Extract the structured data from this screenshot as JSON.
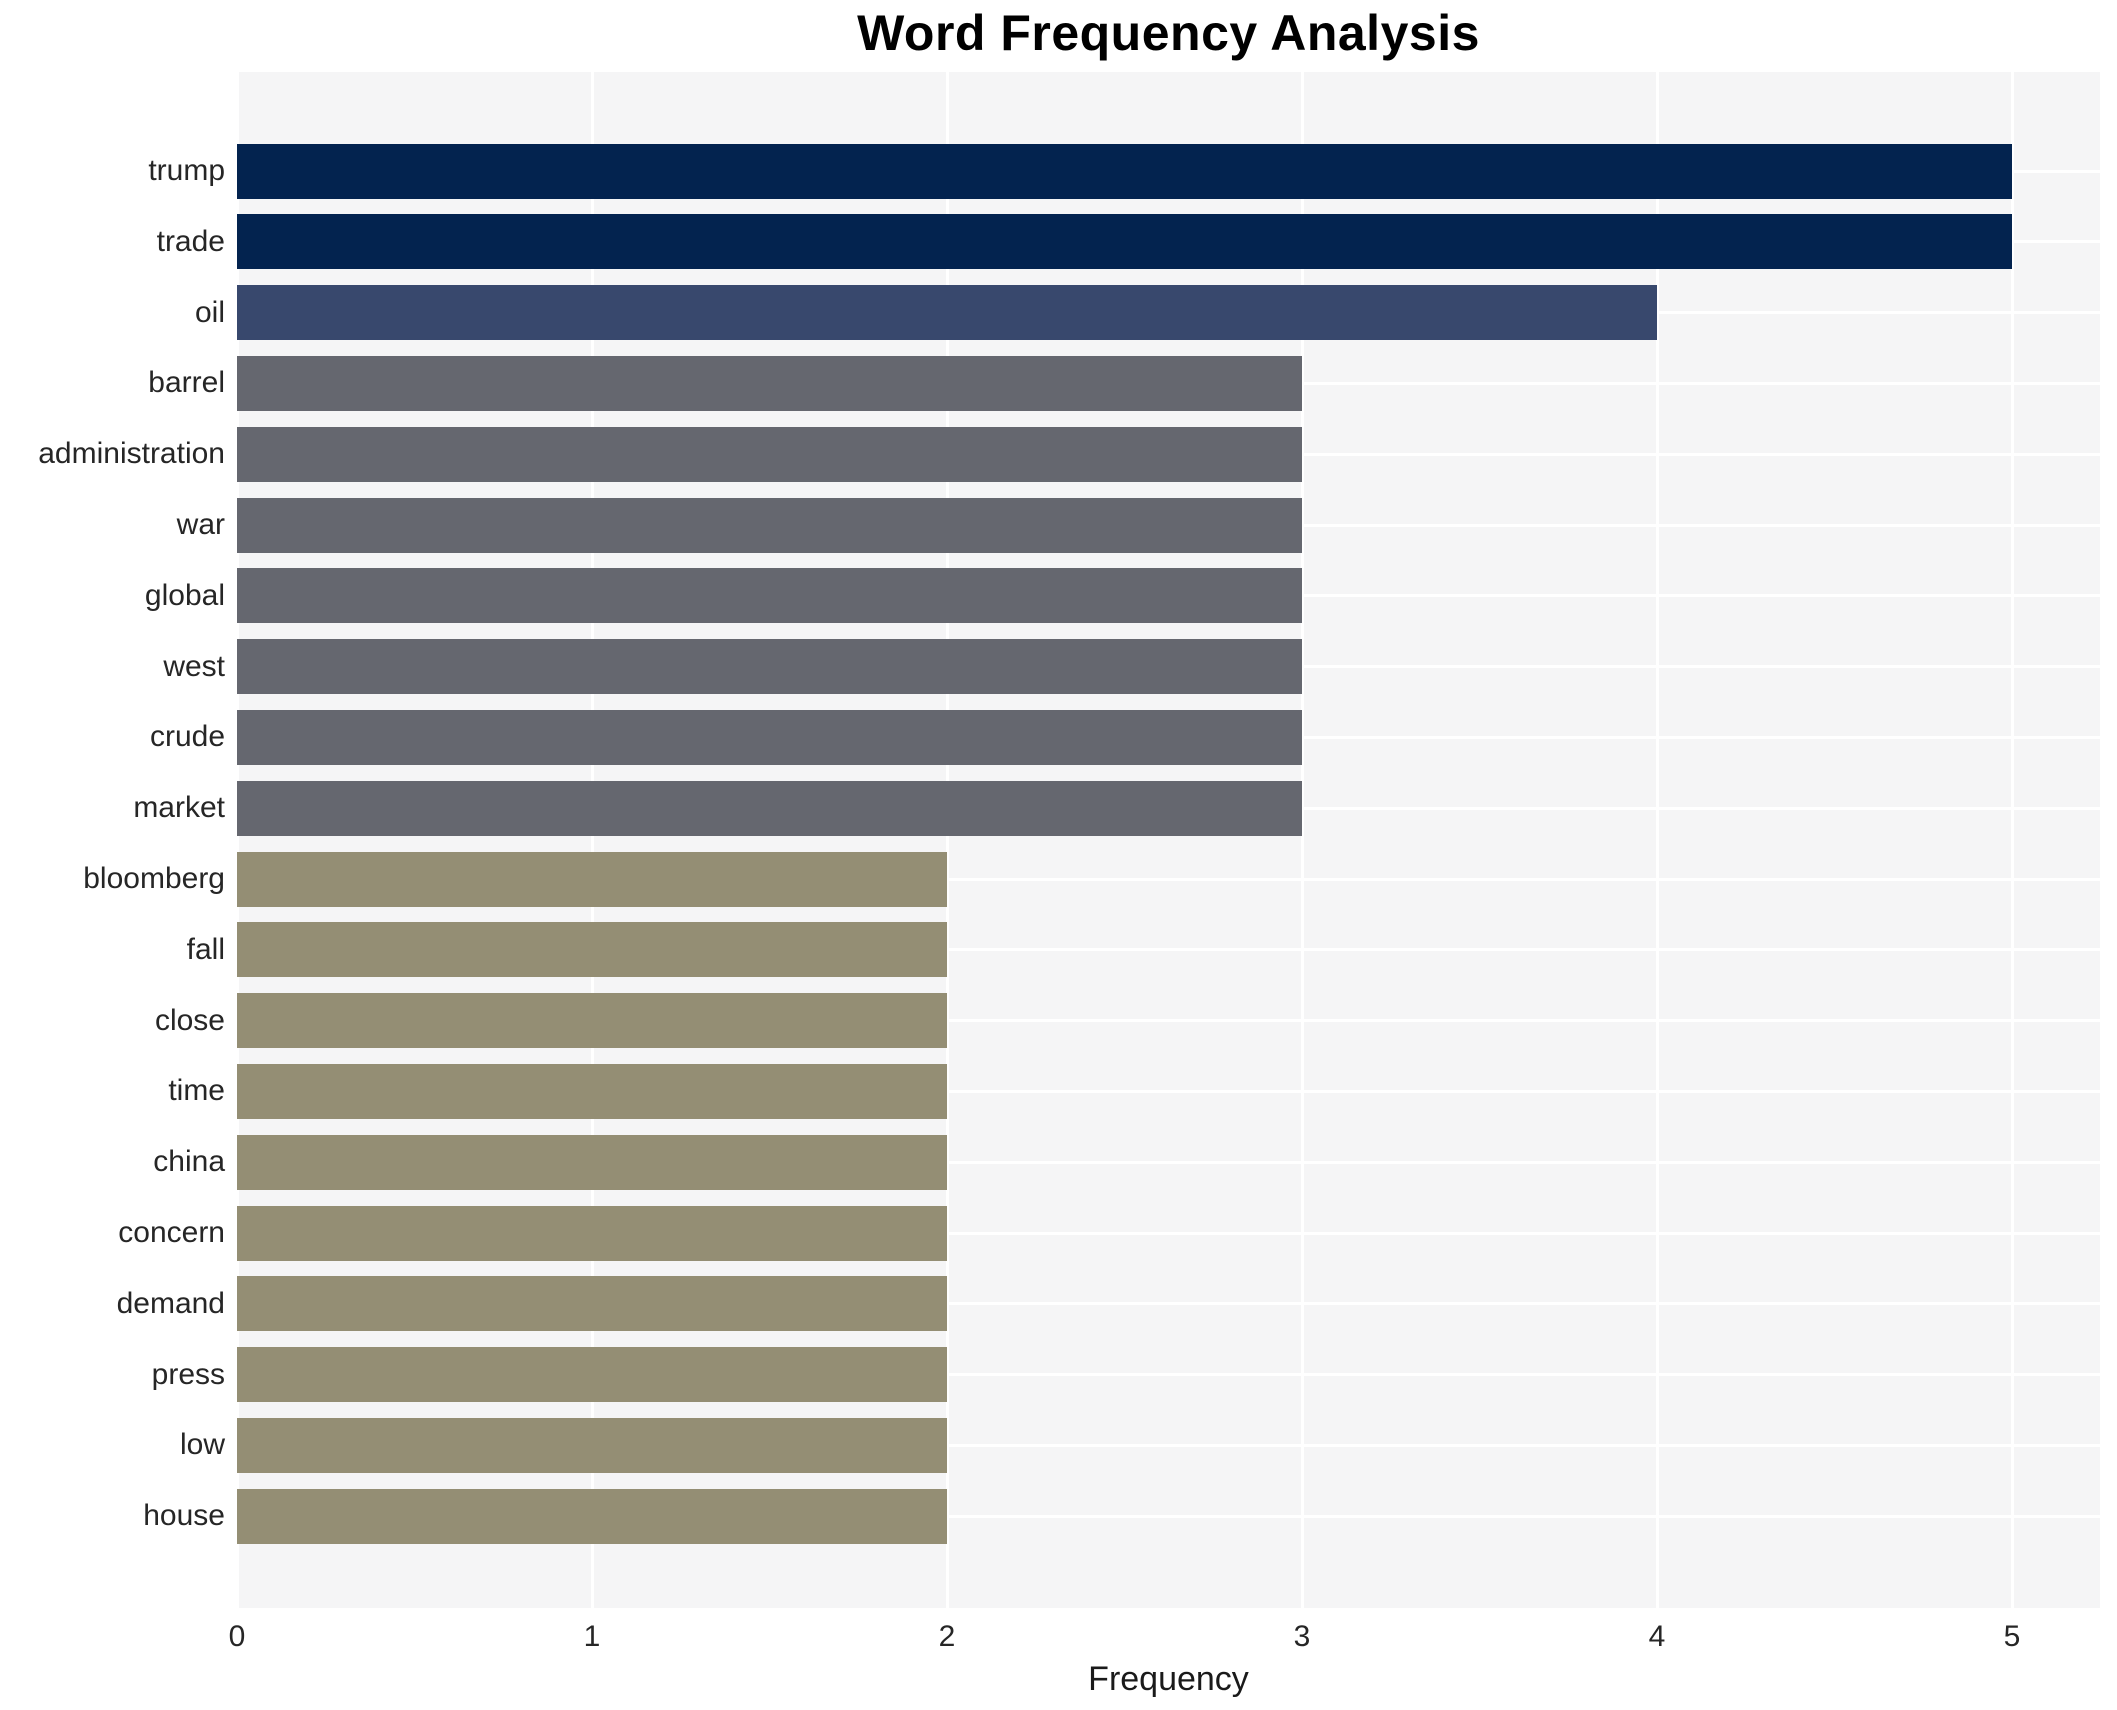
{
  "chart_data": {
    "type": "bar",
    "orientation": "horizontal",
    "title": "Word Frequency Analysis",
    "xlabel": "Frequency",
    "ylabel": "",
    "categories": [
      "trump",
      "trade",
      "oil",
      "barrel",
      "administration",
      "war",
      "global",
      "west",
      "crude",
      "market",
      "bloomberg",
      "fall",
      "close",
      "time",
      "china",
      "concern",
      "demand",
      "press",
      "low",
      "house"
    ],
    "values": [
      5,
      5,
      4,
      3,
      3,
      3,
      3,
      3,
      3,
      3,
      2,
      2,
      2,
      2,
      2,
      2,
      2,
      2,
      2,
      2
    ],
    "xlim": [
      0,
      5
    ],
    "x_ticks": [
      0,
      1,
      2,
      3,
      4,
      5
    ],
    "grid": true,
    "legend": false,
    "colors_by_value": {
      "5": "#03234f",
      "4": "#38486d",
      "3": "#65676f",
      "2": "#948e74"
    },
    "plot_background": "#f5f5f6",
    "gridline_color": "#ffffff",
    "text_color": "#262626"
  }
}
